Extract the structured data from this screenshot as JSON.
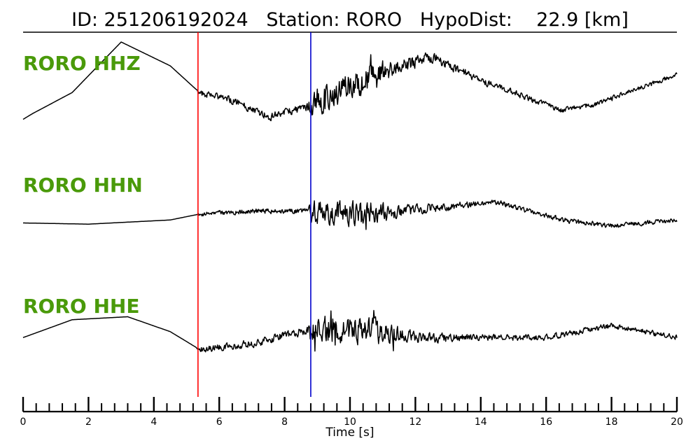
{
  "header": {
    "title": "ID: 251206192024   Station: RORO   HypoDist:    22.9 [km]"
  },
  "chart_data": {
    "type": "line",
    "title": "ID: 251206192024   Station: RORO   HypoDist:    22.9 [km]",
    "xlabel": "Time [s]",
    "ylabel": "",
    "xlim": [
      0,
      20
    ],
    "major_ticks": [
      0,
      2,
      4,
      6,
      8,
      10,
      12,
      14,
      16,
      18,
      20
    ],
    "minor_tick_step": 0.4,
    "grid": false,
    "markers": [
      {
        "name": "p-pick",
        "time": 5.35,
        "color": "#ff0000"
      },
      {
        "name": "s-pick",
        "time": 8.8,
        "color": "#0000cc"
      }
    ],
    "series": [
      {
        "name": "RORO HHZ",
        "label_color": "#4a9a0a",
        "envelope": [
          [
            0,
            0.5
          ],
          [
            0.3,
            0.4
          ],
          [
            1.5,
            0.05
          ],
          [
            3.0,
            -0.8
          ],
          [
            4.5,
            -0.4
          ],
          [
            5.4,
            0.05
          ],
          [
            6.5,
            0.2
          ],
          [
            7.5,
            0.45
          ],
          [
            8.7,
            0.3
          ],
          [
            10.0,
            -0.05
          ],
          [
            11.0,
            -0.3
          ],
          [
            12.5,
            -0.55
          ],
          [
            14.0,
            -0.15
          ],
          [
            15.5,
            0.15
          ],
          [
            16.5,
            0.35
          ],
          [
            17.5,
            0.25
          ],
          [
            19.0,
            -0.05
          ],
          [
            20.0,
            -0.25
          ]
        ],
        "noise": [
          [
            0,
            0
          ],
          [
            5.3,
            0
          ],
          [
            5.4,
            0.07
          ],
          [
            8.7,
            0.1
          ],
          [
            8.8,
            0.32
          ],
          [
            10.5,
            0.28
          ],
          [
            12.0,
            0.14
          ],
          [
            14.0,
            0.07
          ],
          [
            20.0,
            0.05
          ]
        ]
      },
      {
        "name": "RORO HHN",
        "label_color": "#4a9a0a",
        "envelope": [
          [
            0,
            0.1
          ],
          [
            2.0,
            0.12
          ],
          [
            4.5,
            0.05
          ],
          [
            5.4,
            -0.05
          ],
          [
            7.0,
            -0.1
          ],
          [
            8.7,
            -0.1
          ],
          [
            10.5,
            -0.05
          ],
          [
            12.5,
            -0.15
          ],
          [
            14.5,
            -0.25
          ],
          [
            16.5,
            0.05
          ],
          [
            18.0,
            0.15
          ],
          [
            20.0,
            0.05
          ]
        ],
        "noise": [
          [
            0,
            0
          ],
          [
            5.3,
            0
          ],
          [
            5.4,
            0.05
          ],
          [
            8.7,
            0.06
          ],
          [
            8.8,
            0.3
          ],
          [
            10.5,
            0.24
          ],
          [
            12.0,
            0.12
          ],
          [
            14.0,
            0.06
          ],
          [
            20.0,
            0.05
          ]
        ]
      },
      {
        "name": "RORO HHE",
        "label_color": "#4a9a0a",
        "envelope": [
          [
            0,
            0.05
          ],
          [
            1.5,
            -0.25
          ],
          [
            3.2,
            -0.3
          ],
          [
            4.5,
            -0.05
          ],
          [
            5.4,
            0.25
          ],
          [
            7.0,
            0.15
          ],
          [
            8.5,
            -0.05
          ],
          [
            10.0,
            -0.1
          ],
          [
            12.0,
            0.05
          ],
          [
            14.0,
            0.05
          ],
          [
            16.0,
            0.05
          ],
          [
            18.0,
            -0.15
          ],
          [
            20.0,
            0.05
          ]
        ],
        "noise": [
          [
            0,
            0
          ],
          [
            5.3,
            0
          ],
          [
            5.4,
            0.07
          ],
          [
            8.7,
            0.1
          ],
          [
            8.8,
            0.3
          ],
          [
            10.8,
            0.28
          ],
          [
            12.0,
            0.12
          ],
          [
            14.0,
            0.07
          ],
          [
            20.0,
            0.06
          ]
        ]
      }
    ]
  }
}
